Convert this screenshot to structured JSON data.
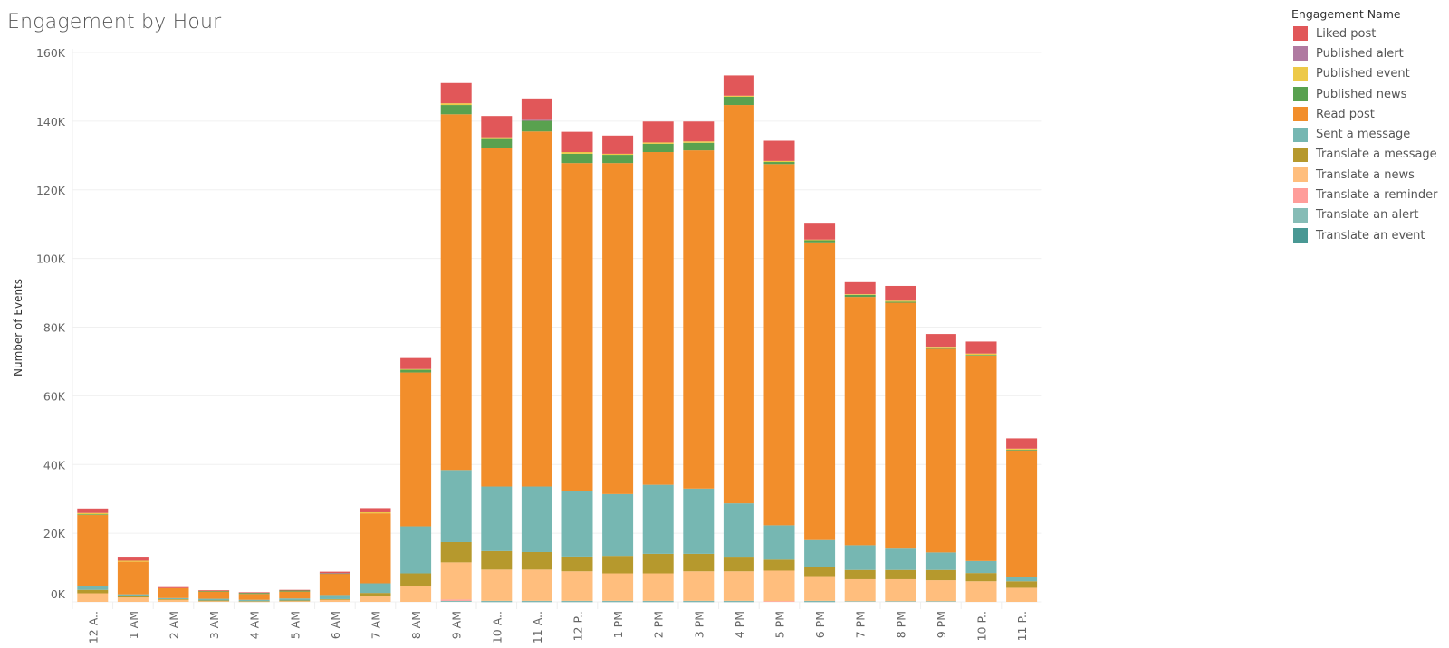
{
  "chart_data": {
    "type": "bar",
    "stacked": true,
    "title": "Engagement by Hour",
    "xlabel": "",
    "ylabel": "Number of Events",
    "ylim": [
      0,
      160000
    ],
    "yticks": [
      0,
      20000,
      40000,
      60000,
      80000,
      100000,
      120000,
      140000,
      160000
    ],
    "ytick_labels": [
      "0K",
      "20K",
      "40K",
      "60K",
      "80K",
      "100K",
      "120K",
      "140K",
      "160K"
    ],
    "grid": true,
    "legend_title": "Engagement Name",
    "legend_position": "right",
    "categories": [
      "12 A..",
      "1 AM",
      "2 AM",
      "3 AM",
      "4 AM",
      "5 AM",
      "6 AM",
      "7 AM",
      "8 AM",
      "9 AM",
      "10 A..",
      "11 A..",
      "12 P..",
      "1 PM",
      "2 PM",
      "3 PM",
      "4 PM",
      "5 PM",
      "6 PM",
      "7 PM",
      "8 PM",
      "9 PM",
      "10 P..",
      "11 P.."
    ],
    "series": [
      {
        "name": "Liked post",
        "color": "#e15759",
        "values": [
          1300,
          900,
          300,
          200,
          200,
          200,
          400,
          1200,
          3200,
          5900,
          6200,
          6200,
          5900,
          5300,
          6100,
          5800,
          5900,
          5900,
          4900,
          3500,
          4300,
          3700,
          3500,
          3000
        ]
      },
      {
        "name": "Published alert",
        "color": "#b07aa1",
        "values": [
          0,
          0,
          0,
          0,
          0,
          0,
          100,
          0,
          0,
          0,
          0,
          300,
          0,
          0,
          0,
          0,
          0,
          0,
          0,
          0,
          0,
          0,
          0,
          0
        ]
      },
      {
        "name": "Published event",
        "color": "#edc948",
        "values": [
          400,
          300,
          0,
          0,
          0,
          0,
          0,
          300,
          200,
          500,
          500,
          0,
          500,
          300,
          400,
          400,
          300,
          300,
          200,
          200,
          300,
          200,
          400,
          300
        ]
      },
      {
        "name": "Published news",
        "color": "#59a14f",
        "values": [
          200,
          0,
          0,
          200,
          300,
          300,
          100,
          0,
          800,
          2700,
          2500,
          3100,
          2700,
          2400,
          2400,
          2200,
          2400,
          600,
          600,
          600,
          300,
          400,
          200,
          200
        ]
      },
      {
        "name": "Read post",
        "color": "#f28e2b",
        "values": [
          20600,
          9500,
          2900,
          2100,
          1700,
          2000,
          6200,
          20400,
          44800,
          103600,
          98700,
          103400,
          95600,
          96400,
          96900,
          98500,
          116000,
          105200,
          86700,
          72300,
          71600,
          59300,
          59800,
          36800
        ]
      },
      {
        "name": "Sent a message",
        "color": "#76b7b2",
        "values": [
          1200,
          600,
          300,
          500,
          400,
          600,
          1200,
          2800,
          13700,
          21000,
          18800,
          19100,
          19000,
          18000,
          20100,
          19000,
          15800,
          10000,
          7800,
          7200,
          6200,
          5100,
          3500,
          1300
        ]
      },
      {
        "name": "Translate a message",
        "color": "#b6992d",
        "values": [
          1000,
          300,
          200,
          200,
          100,
          200,
          200,
          1000,
          3700,
          5900,
          5400,
          5100,
          4300,
          5100,
          5700,
          5100,
          4000,
          3200,
          2700,
          2700,
          2700,
          3000,
          2400,
          1900
        ]
      },
      {
        "name": "Translate a news",
        "color": "#ffbe7d",
        "values": [
          2500,
          1300,
          600,
          200,
          100,
          200,
          600,
          1600,
          4600,
          10800,
          9100,
          9100,
          8600,
          8000,
          8000,
          8600,
          8600,
          8900,
          7200,
          6400,
          6400,
          6100,
          6000,
          4100
        ]
      },
      {
        "name": "Translate a reminder",
        "color": "#ff9d9a",
        "values": [
          0,
          0,
          0,
          0,
          0,
          0,
          0,
          0,
          0,
          400,
          0,
          0,
          0,
          0,
          0,
          0,
          0,
          200,
          0,
          0,
          0,
          0,
          0,
          0
        ]
      },
      {
        "name": "Translate an alert",
        "color": "#86bcb6",
        "values": [
          0,
          0,
          0,
          0,
          0,
          0,
          0,
          0,
          0,
          300,
          200,
          200,
          200,
          200,
          200,
          200,
          200,
          0,
          200,
          200,
          200,
          200,
          0,
          0
        ]
      },
      {
        "name": "Translate an event",
        "color": "#499894",
        "values": [
          0,
          0,
          0,
          0,
          0,
          0,
          0,
          0,
          0,
          0,
          100,
          100,
          100,
          100,
          100,
          100,
          100,
          0,
          100,
          0,
          0,
          0,
          0,
          0
        ]
      }
    ]
  }
}
